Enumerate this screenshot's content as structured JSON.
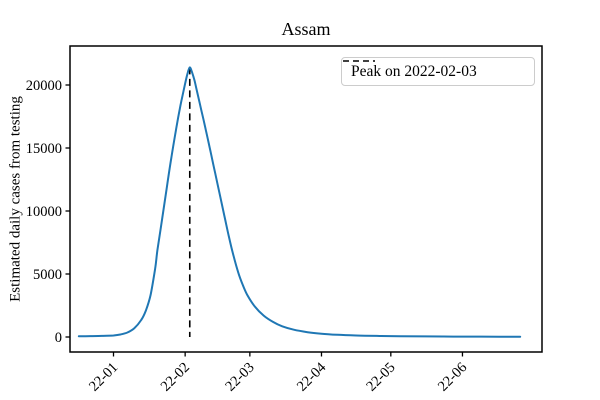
{
  "figure": {
    "title": "Assam",
    "ylabel": "Estimated daily cases from testing",
    "legend_label": "Peak on 2022-02-03"
  },
  "chart_data": {
    "type": "line",
    "title": "Assam",
    "xlabel": "",
    "ylabel": "Estimated daily cases from testing",
    "grid": false,
    "legend": {
      "position": "upper right",
      "entries": [
        "Peak on 2022-02-03"
      ]
    },
    "x_ticks": [
      {
        "date": "2022-01-01",
        "label": "22-01"
      },
      {
        "date": "2022-02-01",
        "label": "22-02"
      },
      {
        "date": "2022-03-01",
        "label": "22-03"
      },
      {
        "date": "2022-04-01",
        "label": "22-04"
      },
      {
        "date": "2022-05-01",
        "label": "22-05"
      },
      {
        "date": "2022-06-01",
        "label": "22-06"
      }
    ],
    "y_ticks": [
      {
        "value": 0,
        "label": "0"
      },
      {
        "value": 5000,
        "label": "5000"
      },
      {
        "value": 10000,
        "label": "10000"
      },
      {
        "value": 15000,
        "label": "15000"
      },
      {
        "value": 20000,
        "label": "20000"
      }
    ],
    "xlim": [
      "2021-12-13",
      "2022-07-05"
    ],
    "ylim": [
      -1200,
      23100
    ],
    "peak": {
      "date": "2022-02-03",
      "value": 21400,
      "label": "Peak on 2022-02-03"
    },
    "colors": {
      "line": "#1f77b4",
      "peak_line": "#000000",
      "spine": "#000000"
    },
    "series": [
      {
        "name": "Estimated daily cases from testing",
        "color": "#1f77b4",
        "points": [
          [
            "2021-12-17",
            60
          ],
          [
            "2021-12-22",
            70
          ],
          [
            "2021-12-27",
            85
          ],
          [
            "2022-01-01",
            120
          ],
          [
            "2022-01-04",
            200
          ],
          [
            "2022-01-07",
            360
          ],
          [
            "2022-01-10",
            700
          ],
          [
            "2022-01-13",
            1350
          ],
          [
            "2022-01-15",
            2100
          ],
          [
            "2022-01-17",
            3300
          ],
          [
            "2022-01-19",
            5400
          ],
          [
            "2022-01-20",
            6900
          ],
          [
            "2022-01-22",
            9300
          ],
          [
            "2022-01-24",
            11800
          ],
          [
            "2022-01-26",
            14200
          ],
          [
            "2022-01-28",
            16400
          ],
          [
            "2022-01-30",
            18400
          ],
          [
            "2022-02-01",
            20100
          ],
          [
            "2022-02-02",
            20900
          ],
          [
            "2022-02-03",
            21400
          ],
          [
            "2022-02-04",
            21000
          ],
          [
            "2022-02-05",
            20400
          ],
          [
            "2022-02-06",
            19600
          ],
          [
            "2022-02-08",
            18000
          ],
          [
            "2022-02-10",
            16400
          ],
          [
            "2022-02-12",
            14700
          ],
          [
            "2022-02-14",
            13000
          ],
          [
            "2022-02-16",
            11300
          ],
          [
            "2022-02-18",
            9600
          ],
          [
            "2022-02-20",
            7900
          ],
          [
            "2022-02-22",
            6400
          ],
          [
            "2022-02-24",
            5100
          ],
          [
            "2022-02-26",
            4100
          ],
          [
            "2022-02-28",
            3300
          ],
          [
            "2022-03-03",
            2450
          ],
          [
            "2022-03-07",
            1700
          ],
          [
            "2022-03-11",
            1200
          ],
          [
            "2022-03-15",
            850
          ],
          [
            "2022-03-20",
            580
          ],
          [
            "2022-03-26",
            380
          ],
          [
            "2022-04-01",
            260
          ],
          [
            "2022-04-08",
            175
          ],
          [
            "2022-04-16",
            120
          ],
          [
            "2022-04-25",
            85
          ],
          [
            "2022-05-05",
            60
          ],
          [
            "2022-05-16",
            45
          ],
          [
            "2022-05-28",
            35
          ],
          [
            "2022-06-09",
            28
          ],
          [
            "2022-06-18",
            24
          ],
          [
            "2022-06-26",
            20
          ]
        ]
      }
    ]
  }
}
